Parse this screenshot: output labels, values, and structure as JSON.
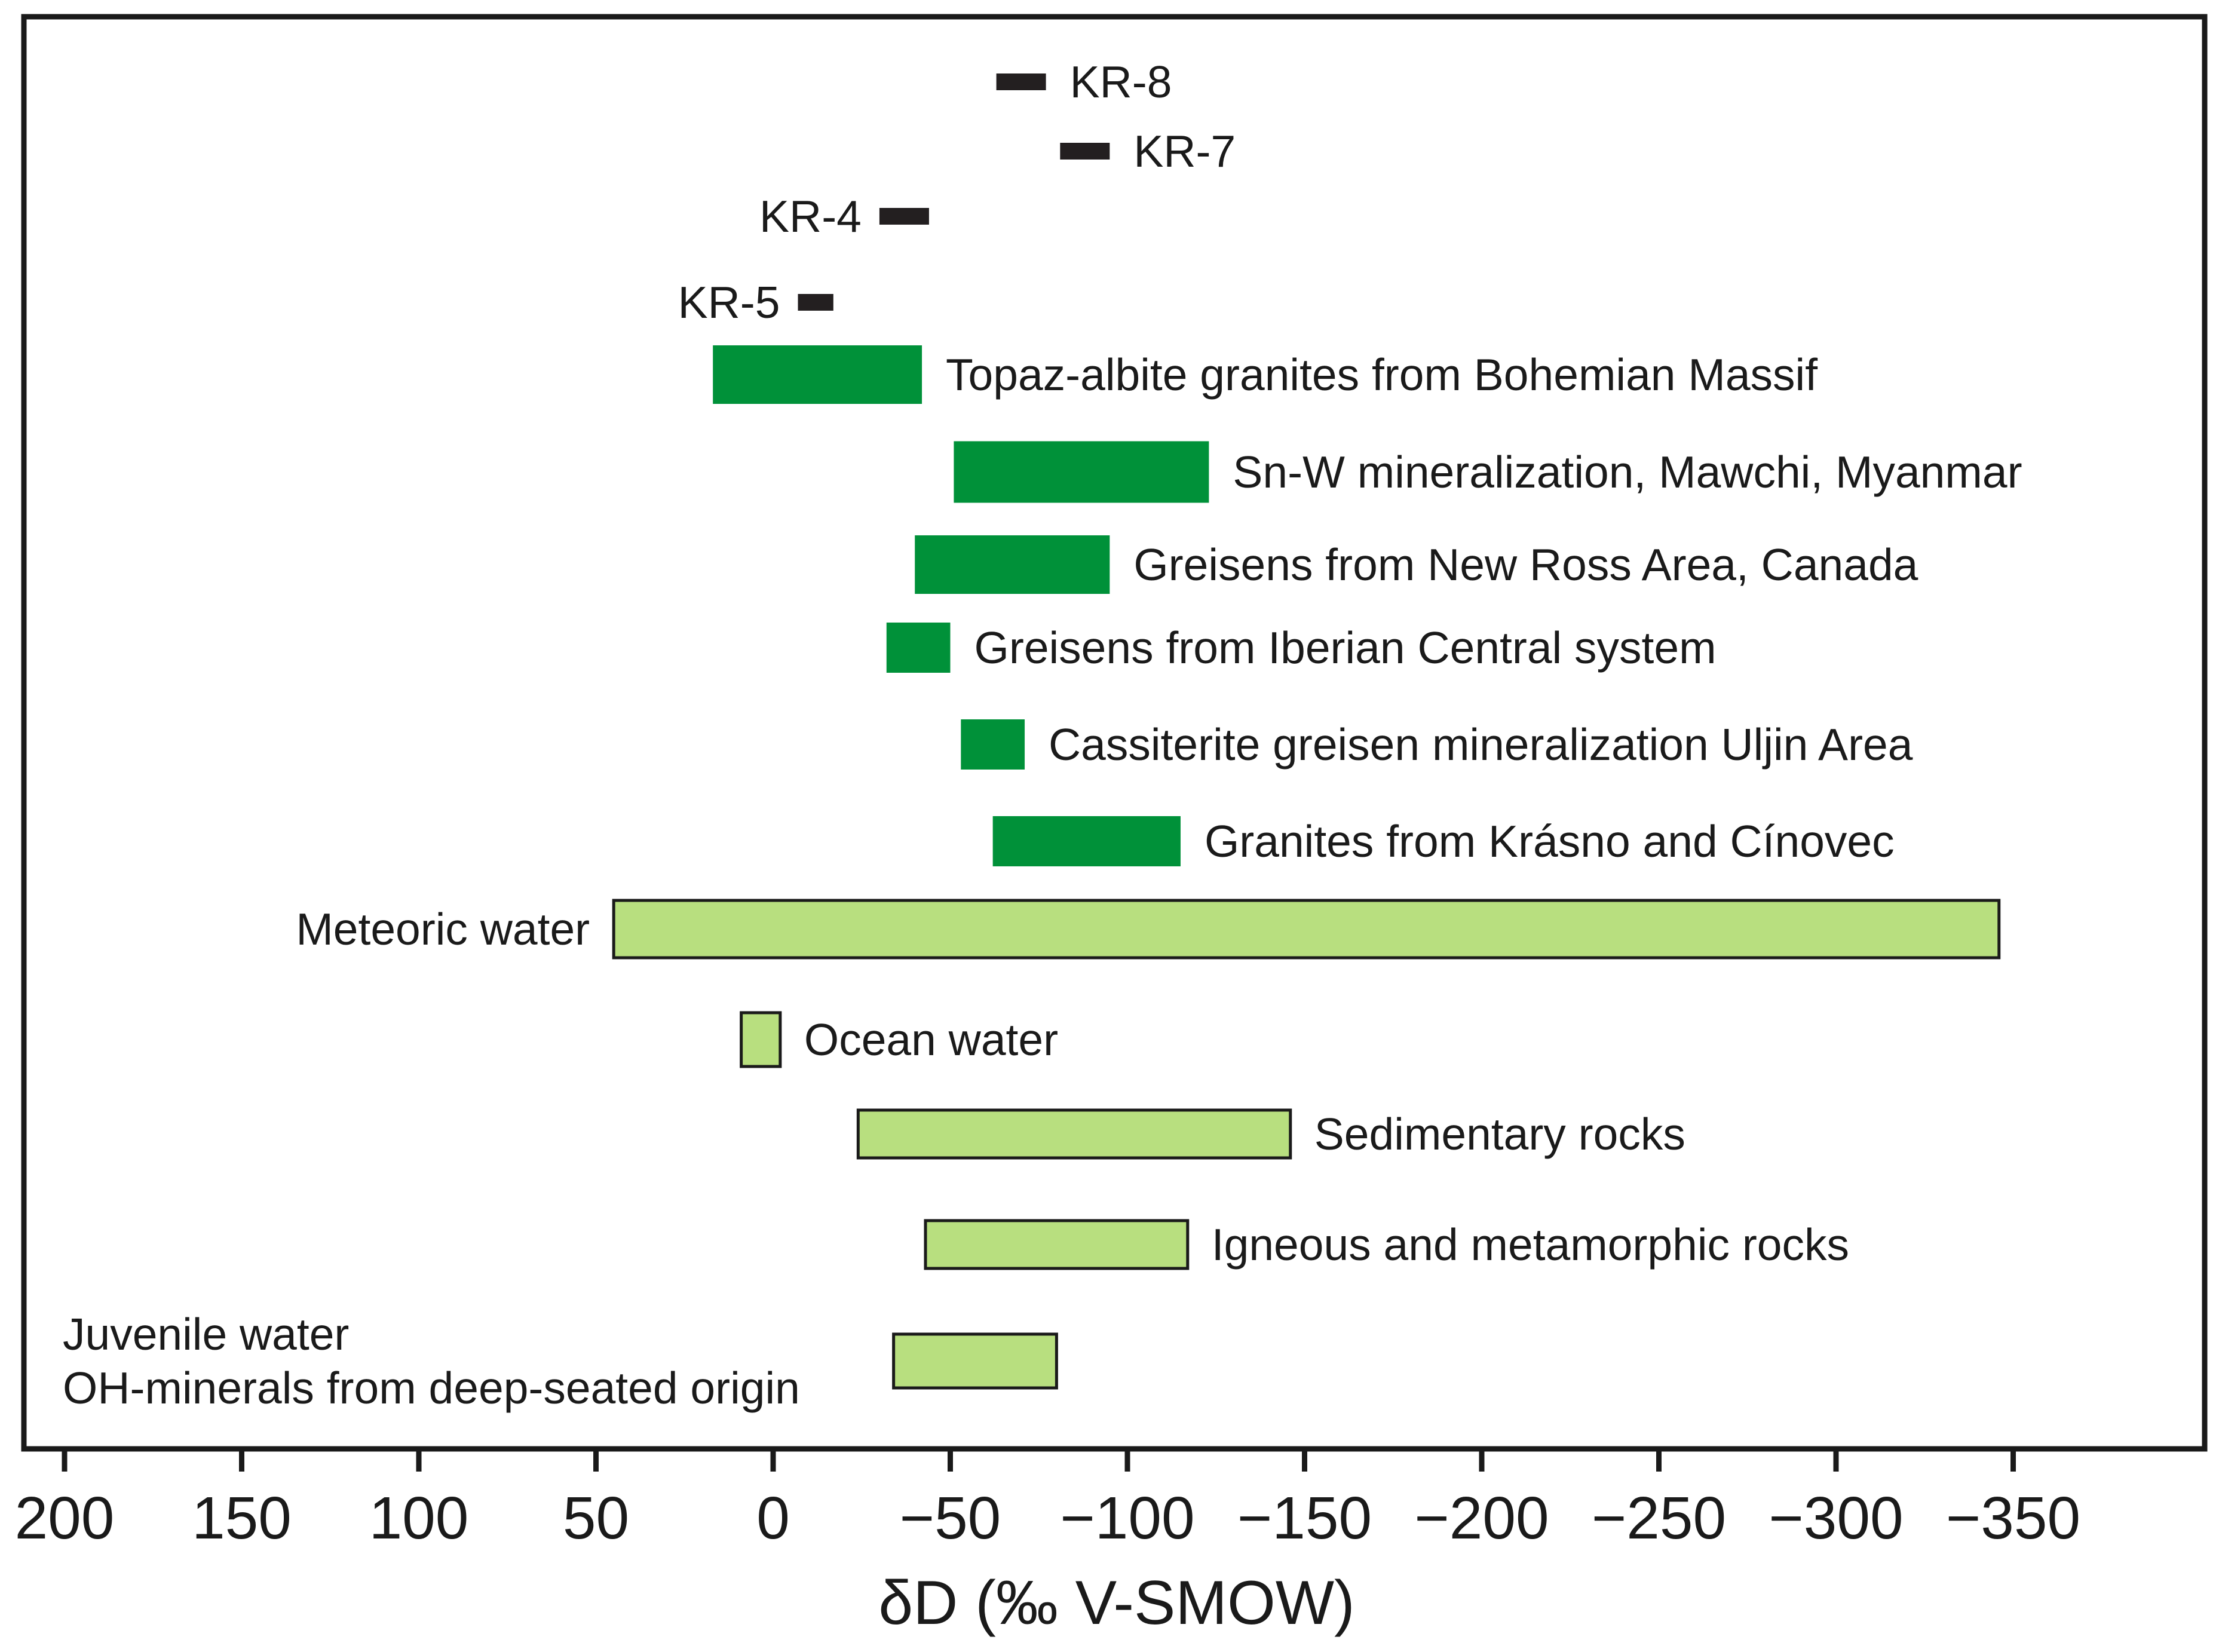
{
  "chart_data": {
    "type": "range-bar",
    "xlabel": "δD (‰ V-SMOW)",
    "xlim": [
      212,
      -392
    ],
    "x_ticks": [
      200,
      150,
      100,
      50,
      0,
      -50,
      -100,
      -150,
      -200,
      -250,
      -300,
      -350
    ],
    "x_tick_labels": [
      "200",
      "150",
      "100",
      "50",
      "0",
      "−50",
      "−100",
      "−150",
      "−200",
      "−250",
      "−300",
      "−350"
    ],
    "colors": {
      "sample": "#231f20",
      "granite_data": "#009139",
      "reference": "#b8df7f",
      "outline": "#1a1a1a"
    },
    "series": [
      {
        "name": "KR-8",
        "label_lines": [
          "KR-8"
        ],
        "min": -77,
        "max": -63,
        "kind": "sample",
        "label_side": "right"
      },
      {
        "name": "KR-7",
        "label_lines": [
          "KR-7"
        ],
        "min": -95,
        "max": -81,
        "kind": "sample",
        "label_side": "right"
      },
      {
        "name": "KR-4",
        "label_lines": [
          "KR-4"
        ],
        "min": -44,
        "max": -30,
        "kind": "sample",
        "label_side": "left"
      },
      {
        "name": "KR-5",
        "label_lines": [
          "KR-5"
        ],
        "min": -17,
        "max": -7,
        "kind": "sample",
        "label_side": "left"
      },
      {
        "name": "Topaz-albite granites from Bohemian Massif",
        "label_lines": [
          "Topaz-albite granites from Bohemian Massif"
        ],
        "min": -42,
        "max": 17,
        "kind": "granite_data",
        "label_side": "right"
      },
      {
        "name": "Sn-W mineralization, Mawchi, Myanmar",
        "label_lines": [
          "Sn-W mineralization, Mawchi, Myanmar"
        ],
        "min": -123,
        "max": -51,
        "kind": "granite_data",
        "label_side": "right"
      },
      {
        "name": "Greisens from New Ross Area, Canada",
        "label_lines": [
          "Greisens from New Ross Area, Canada"
        ],
        "min": -95,
        "max": -40,
        "kind": "granite_data",
        "label_side": "right"
      },
      {
        "name": "Greisens from Iberian Central system",
        "label_lines": [
          "Greisens from Iberian Central system"
        ],
        "min": -50,
        "max": -32,
        "kind": "granite_data",
        "label_side": "right"
      },
      {
        "name": "Cassiterite greisen mineralization Uljin Area",
        "label_lines": [
          "Cassiterite greisen mineralization Uljin Area"
        ],
        "min": -71,
        "max": -53,
        "kind": "granite_data",
        "label_side": "right"
      },
      {
        "name": "Granites from Krásno and Cínovec",
        "label_lines": [
          "Granites from Krásno and Cínovec"
        ],
        "min": -115,
        "max": -62,
        "kind": "granite_data",
        "label_side": "right"
      },
      {
        "name": "Meteoric water",
        "label_lines": [
          "Meteoric water"
        ],
        "min": -346,
        "max": 45,
        "kind": "reference",
        "label_side": "left"
      },
      {
        "name": "Ocean water",
        "label_lines": [
          "Ocean water"
        ],
        "min": -2,
        "max": 9,
        "kind": "reference",
        "label_side": "right"
      },
      {
        "name": "Sedimentary rocks",
        "label_lines": [
          "Sedimentary rocks"
        ],
        "min": -146,
        "max": -24,
        "kind": "reference",
        "label_side": "right"
      },
      {
        "name": "Igneous and metamorphic rocks",
        "label_lines": [
          "Igneous and metamorphic rocks"
        ],
        "min": -117,
        "max": -43,
        "kind": "reference",
        "label_side": "right"
      },
      {
        "name": "Juvenile water / OH-minerals from deep-seated origin",
        "label_lines": [
          "Juvenile water",
          "OH-minerals from deep-seated origin"
        ],
        "min": -80,
        "max": -34,
        "kind": "reference",
        "label_side": "left"
      }
    ]
  }
}
